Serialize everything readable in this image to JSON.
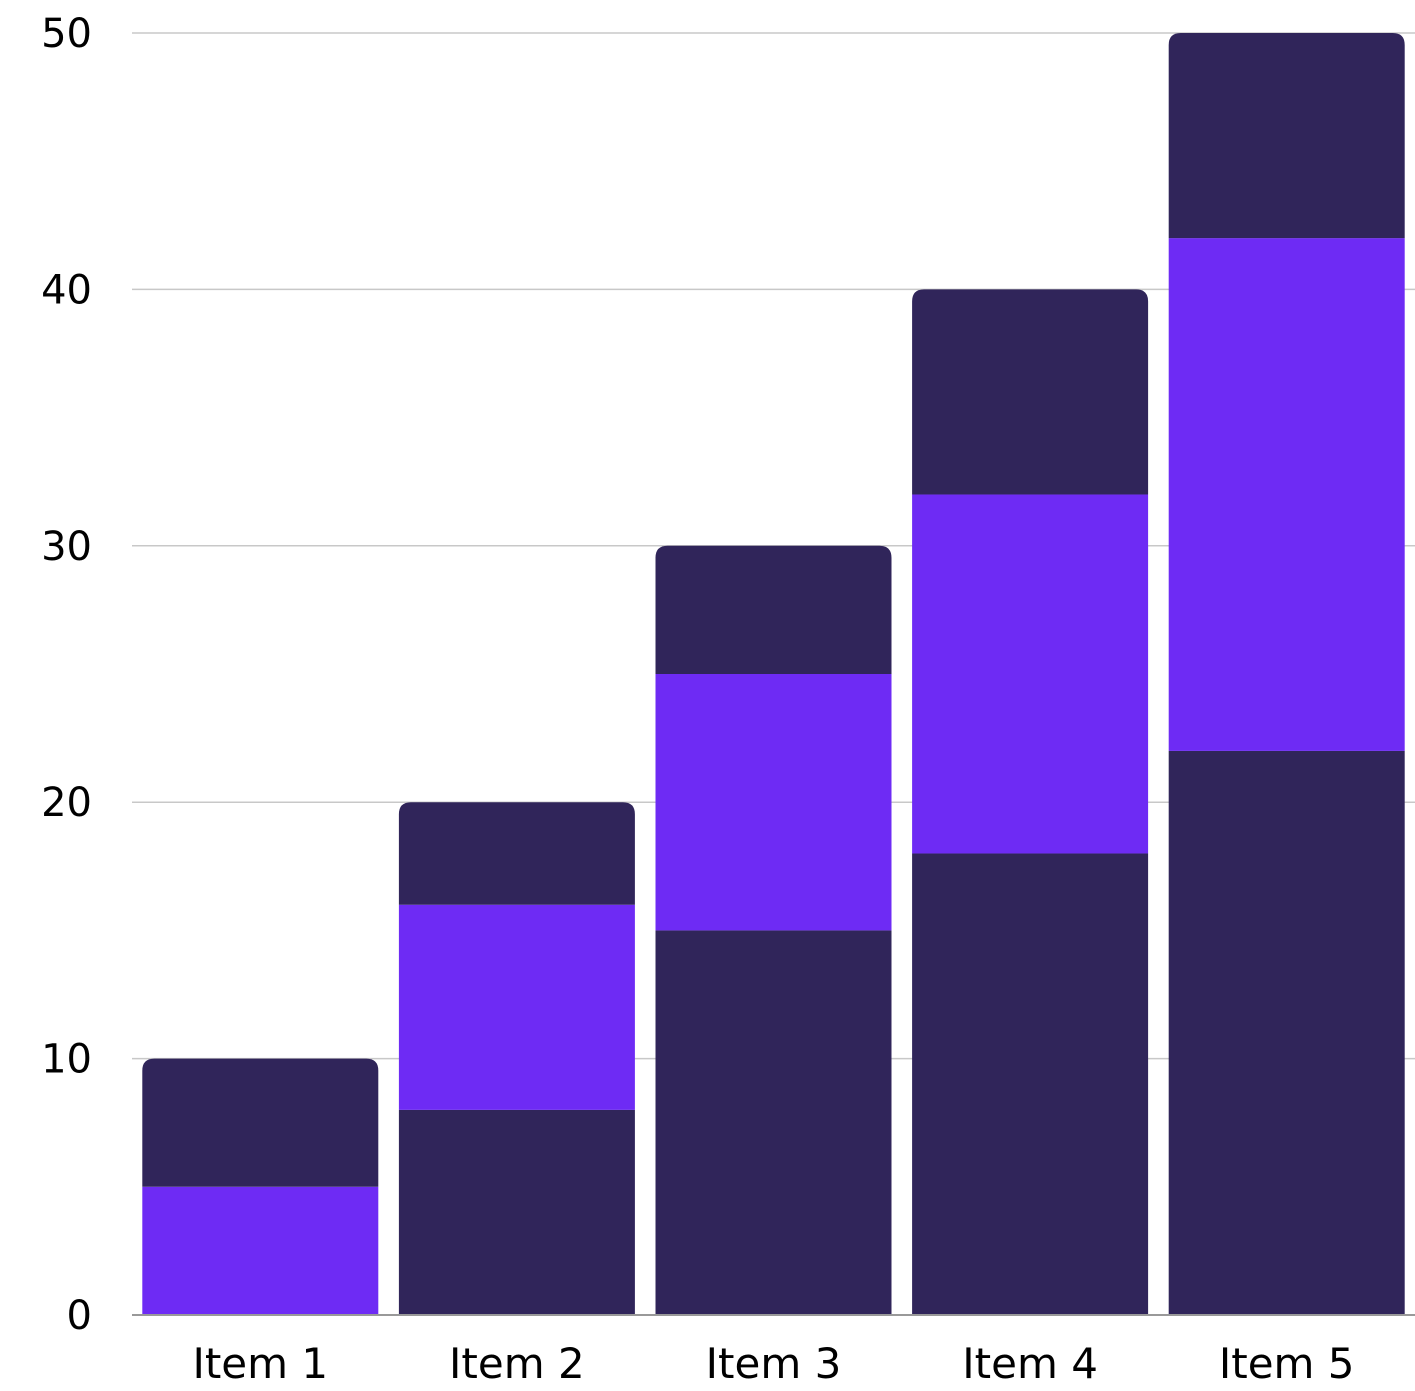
{
  "chart_data": {
    "type": "bar",
    "stacked": true,
    "categories": [
      "Item 1",
      "Item 2",
      "Item 3",
      "Item 4",
      "Item 5"
    ],
    "series": [
      {
        "values": [
          0,
          8,
          15,
          18,
          22
        ]
      },
      {
        "values": [
          5,
          8,
          10,
          14,
          20
        ]
      },
      {
        "values": [
          5,
          4,
          5,
          8,
          8
        ]
      }
    ],
    "ylim": [
      0,
      50
    ],
    "yticks": [
      "0",
      "10",
      "20",
      "30",
      "40",
      "50"
    ],
    "grid": true,
    "legend": "none",
    "title": "",
    "xlabel": "",
    "ylabel": ""
  },
  "colors": {
    "dark": "#30255A",
    "purple": "#6E2BF4",
    "grid": "#C8C8C8",
    "axis": "#999999"
  }
}
